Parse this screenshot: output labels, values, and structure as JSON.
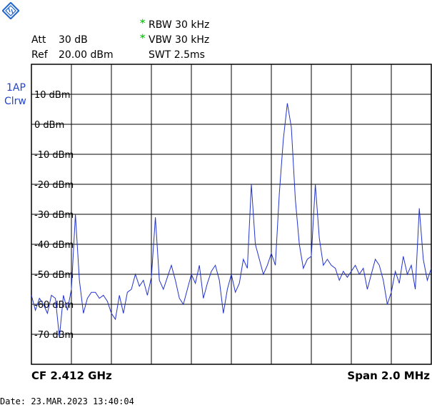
{
  "header": {
    "att_label": "Att",
    "att_value": "30 dB",
    "ref_label": "Ref",
    "ref_value": "20.00 dBm",
    "rbw_marker": "*",
    "rbw": "RBW 30 kHz",
    "vbw_marker": "*",
    "vbw": "VBW 30 kHz",
    "swt": "SWT 2.5ms"
  },
  "trace": {
    "label_line1": "1AP",
    "label_line2": "Clrw",
    "color": "#2233cc"
  },
  "footer": {
    "center_freq": "CF 2.412 GHz",
    "span": "Span 2.0 MHz",
    "date": "Date: 23.MAR.2023  13:40:04"
  },
  "icons": {
    "logo": "rohde-schwarz-logo-icon"
  },
  "chart_data": {
    "type": "line",
    "xlabel": "",
    "ylabel": "",
    "x_range_mhz": [
      2411.0,
      2413.0
    ],
    "ylim": [
      -80,
      20
    ],
    "y_ticks": [
      {
        "value": 10,
        "label": "10 dBm"
      },
      {
        "value": 0,
        "label": "0 dBm"
      },
      {
        "value": -10,
        "label": "-10 dBm"
      },
      {
        "value": -20,
        "label": "-20 dBm"
      },
      {
        "value": -30,
        "label": "-30 dBm"
      },
      {
        "value": -40,
        "label": "-40 dBm"
      },
      {
        "value": -50,
        "label": "-50 dBm"
      },
      {
        "value": -60,
        "label": "-60 dBm"
      },
      {
        "value": -70,
        "label": "-70 dBm"
      }
    ],
    "grid": true,
    "series": [
      {
        "x": [
          2411.0,
          2411.02,
          2411.04,
          2411.06,
          2411.08,
          2411.1,
          2411.12,
          2411.14,
          2411.16,
          2411.18,
          2411.2,
          2411.22,
          2411.24,
          2411.26,
          2411.28,
          2411.3,
          2411.32,
          2411.34,
          2411.36,
          2411.38,
          2411.4,
          2411.42,
          2411.44,
          2411.46,
          2411.48,
          2411.5,
          2411.52,
          2411.54,
          2411.56,
          2411.58,
          2411.6,
          2411.62,
          2411.64,
          2411.66,
          2411.68,
          2411.7,
          2411.72,
          2411.74,
          2411.76,
          2411.78,
          2411.8,
          2411.82,
          2411.84,
          2411.86,
          2411.88,
          2411.9,
          2411.92,
          2411.94,
          2411.96,
          2411.98,
          2412.0,
          2412.02,
          2412.04,
          2412.06,
          2412.08,
          2412.1,
          2412.12,
          2412.14,
          2412.16,
          2412.18,
          2412.2,
          2412.22,
          2412.24,
          2412.26,
          2412.28,
          2412.3,
          2412.32,
          2412.34,
          2412.36,
          2412.38,
          2412.4,
          2412.42,
          2412.44,
          2412.46,
          2412.48,
          2412.5,
          2412.52,
          2412.54,
          2412.56,
          2412.58,
          2412.6,
          2412.62,
          2412.64,
          2412.66,
          2412.68,
          2412.7,
          2412.72,
          2412.74,
          2412.76,
          2412.78,
          2412.8,
          2412.82,
          2412.84,
          2412.86,
          2412.88,
          2412.9,
          2412.92,
          2412.94,
          2412.96,
          2412.98,
          2413.0
        ],
        "values": [
          -57,
          -62,
          -58,
          -60,
          -63,
          -57,
          -58,
          -71,
          -57,
          -62,
          -55,
          -30,
          -52,
          -63,
          -58,
          -56,
          -56,
          -58,
          -57,
          -59,
          -63,
          -65,
          -57,
          -63,
          -56,
          -55,
          -50,
          -54,
          -52,
          -57,
          -51,
          -31,
          -52,
          -55,
          -51,
          -47,
          -52,
          -58,
          -60,
          -55,
          -50,
          -53,
          -47,
          -58,
          -53,
          -49,
          -47,
          -52,
          -63,
          -55,
          -50,
          -56,
          -53,
          -45,
          -48,
          -20,
          -40,
          -45,
          -50,
          -47,
          -43,
          -47,
          -23,
          -5,
          7,
          -1,
          -25,
          -40,
          -48,
          -45,
          -44,
          -20,
          -38,
          -47,
          -45,
          -47,
          -48,
          -52,
          -49,
          -51,
          -49,
          -47,
          -50,
          -48,
          -55,
          -50,
          -45,
          -47,
          -52,
          -60,
          -56,
          -49,
          -53,
          -44,
          -50,
          -47,
          -55,
          -28,
          -45,
          -52,
          -48
        ]
      }
    ]
  }
}
